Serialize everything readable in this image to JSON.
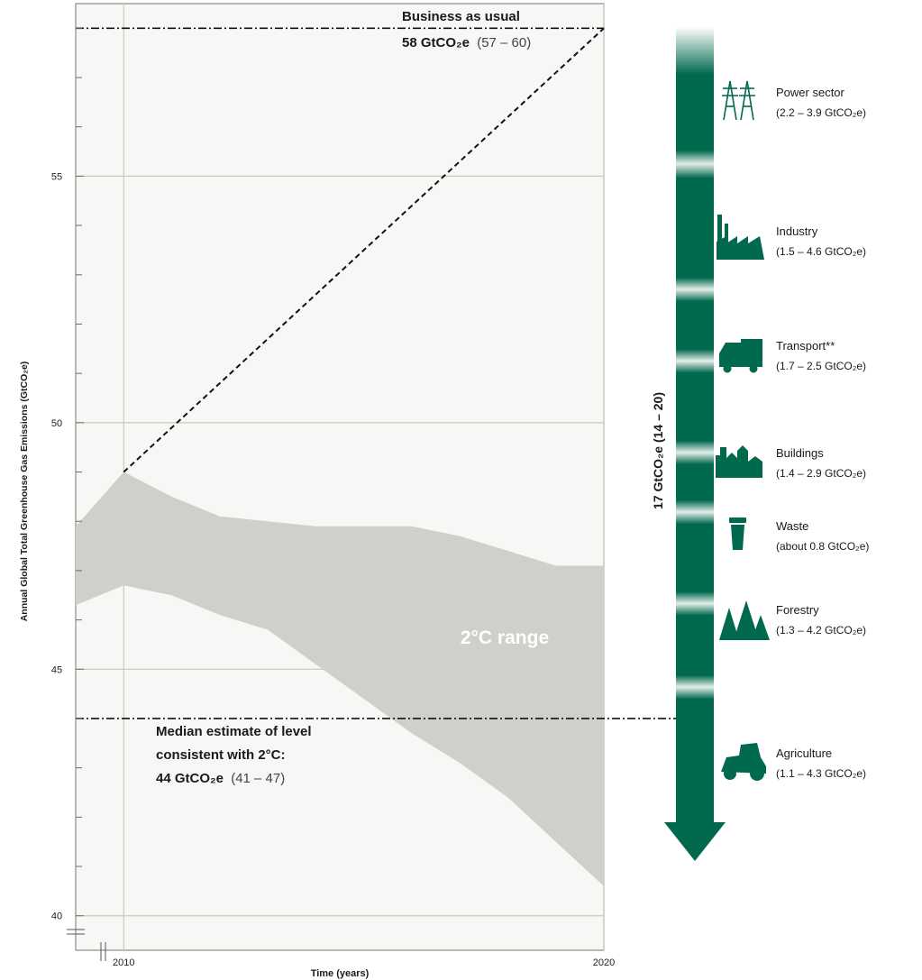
{
  "chart_data": {
    "type": "area",
    "ylabel": "Annual Global Total Greenhouse Gas Emissions (GtCO₂e)",
    "xlabel": "Time (years)",
    "xlim": [
      2009,
      2020
    ],
    "ylim": [
      39.3,
      58.5
    ],
    "y_ticks": [
      40,
      45,
      50,
      55
    ],
    "x_ticks": [
      2010,
      2020
    ],
    "grid": true,
    "range_band": {
      "name": "2°C range",
      "x": [
        2009,
        2010,
        2011,
        2012,
        2013,
        2014,
        2015,
        2016,
        2017,
        2018,
        2019,
        2020
      ],
      "upper": [
        47.9,
        49.0,
        48.5,
        48.1,
        48.0,
        47.9,
        47.9,
        47.9,
        47.7,
        47.4,
        47.1,
        47.1
      ],
      "lower": [
        46.3,
        46.7,
        46.5,
        46.1,
        45.8,
        45.1,
        44.4,
        43.7,
        43.1,
        42.4,
        41.5,
        40.6
      ]
    },
    "bau_projection": {
      "x": [
        2010,
        2020
      ],
      "y": [
        49.0,
        58.0
      ]
    },
    "reference_lines": [
      {
        "y": 58,
        "label_bold": "Business as usual",
        "value_bold": "58 GtCO₂e",
        "range": "(57 – 60)"
      },
      {
        "y": 44,
        "label_bold": [
          "Median estimate of level",
          "consistent with 2°C:"
        ],
        "value_bold": "44 GtCO₂e",
        "range": "(41 – 47)"
      }
    ],
    "gap": {
      "label": "17 GtCO₂e (14 – 20)",
      "from": 58,
      "to": 41,
      "color": "#00694e"
    },
    "sectors": [
      {
        "icon": "power-pylon-icon",
        "name": "Power sector",
        "range": "(2.2 – 3.9 GtCO₂e)"
      },
      {
        "icon": "factory-icon",
        "name": "Industry",
        "range": "(1.5 – 4.6 GtCO₂e)"
      },
      {
        "icon": "truck-icon",
        "name": "Transport**",
        "range": "(1.7 – 2.5 GtCO₂e)"
      },
      {
        "icon": "buildings-icon",
        "name": "Buildings",
        "range": "(1.4 – 2.9 GtCO₂e)"
      },
      {
        "icon": "bin-icon",
        "name": "Waste",
        "range": "(about 0.8 GtCO₂e)"
      },
      {
        "icon": "trees-icon",
        "name": "Forestry",
        "range": "(1.3 – 4.2 GtCO₂e)"
      },
      {
        "icon": "tractor-icon",
        "name": "Agriculture",
        "range": "(1.1 – 4.3 GtCO₂e)"
      }
    ],
    "colors": {
      "band": "#cfd0c9",
      "plot_bg": "#f7f7f5",
      "grid": "#c9c9c3",
      "arrow": "#00694e",
      "band_label": "#ffffff"
    }
  }
}
